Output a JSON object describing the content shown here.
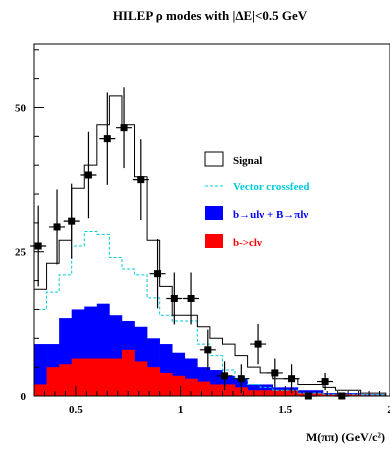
{
  "chart_data": {
    "type": "bar",
    "title": "HILEP ρ modes with |ΔE|<0.5 GeV",
    "xlabel": "M(ππ) (GeV/c²)",
    "ylabel": "",
    "xlim": [
      0.3,
      2.0
    ],
    "ylim": [
      0,
      61
    ],
    "x_ticks": [
      "0.5",
      "1",
      "1.5",
      "2"
    ],
    "x_tick_values": [
      0.5,
      1.0,
      1.5,
      2.0
    ],
    "y_ticks": [
      "0",
      "25",
      "50"
    ],
    "y_tick_values": [
      0,
      25,
      50
    ],
    "bin_edges": [
      0.3,
      0.36,
      0.42,
      0.48,
      0.54,
      0.6,
      0.66,
      0.72,
      0.78,
      0.84,
      0.9,
      0.96,
      1.02,
      1.08,
      1.14,
      1.2,
      1.26,
      1.32,
      1.38,
      1.44,
      1.5,
      1.56,
      1.62,
      1.68,
      1.74,
      1.8,
      1.86,
      1.92,
      1.98
    ],
    "series": [
      {
        "name": "Signal",
        "style": "outline",
        "color": "#000000",
        "values": [
          18.5,
          23,
          27,
          36,
          40,
          47,
          52,
          47,
          38,
          27,
          19,
          14,
          14,
          12,
          10,
          9,
          7,
          5,
          4,
          3,
          3,
          2,
          2,
          1.5,
          1,
          1,
          0.5,
          0.5
        ]
      },
      {
        "name": "Vector crossfeed",
        "style": "dashed",
        "color": "#00ccdd",
        "values": [
          15,
          18,
          21,
          26,
          28.5,
          28,
          24,
          22,
          21,
          17,
          14,
          13,
          13,
          9,
          7,
          4.5,
          3,
          2,
          1.5,
          1,
          1,
          0.5,
          0.5,
          0.3,
          0.3,
          0.3,
          0.2,
          0.2
        ]
      },
      {
        "name": "b→ulν + B→πlν",
        "style": "fill",
        "color": "#0000ff",
        "values": [
          9,
          9,
          13.5,
          15,
          15.5,
          16,
          14,
          13,
          12,
          10,
          9,
          7.5,
          6.5,
          5,
          4.5,
          3.5,
          3,
          2,
          2,
          1.5,
          1.5,
          1,
          1,
          0.5,
          0.5,
          0.5,
          0.3,
          0.3
        ]
      },
      {
        "name": "b->clν",
        "style": "fill",
        "color": "#ff0000",
        "values": [
          2,
          5,
          5.5,
          6.5,
          6.5,
          6.5,
          6.5,
          8,
          6,
          5,
          4,
          3.5,
          3,
          2.5,
          2,
          2,
          1.5,
          1,
          1,
          1,
          1,
          0.5,
          0.5,
          0.3,
          0.3,
          0.3,
          0.2,
          0.2
        ]
      }
    ],
    "data_points": {
      "x": [
        0.32,
        0.41,
        0.48,
        0.56,
        0.65,
        0.73,
        0.81,
        0.89,
        0.97,
        1.05,
        1.13,
        1.21,
        1.29,
        1.37,
        1.45,
        1.53,
        1.61,
        1.69,
        1.77
      ],
      "y": [
        26,
        29.3,
        30.3,
        38.3,
        44.6,
        46.5,
        37.5,
        21.2,
        16.9,
        16.9,
        8,
        3.5,
        3,
        9,
        4,
        3,
        0,
        2.5,
        0
      ],
      "err": [
        7,
        6.5,
        6.5,
        7.5,
        8,
        7,
        7,
        6,
        4.5,
        4.5,
        3.5,
        2.5,
        2.5,
        3.5,
        2.5,
        2.5,
        0,
        1.5,
        0
      ]
    },
    "legend": [
      "Signal",
      "Vector crossfeed",
      "b→ulν + B→πlν",
      "b->clν"
    ],
    "legend_position": "right"
  }
}
